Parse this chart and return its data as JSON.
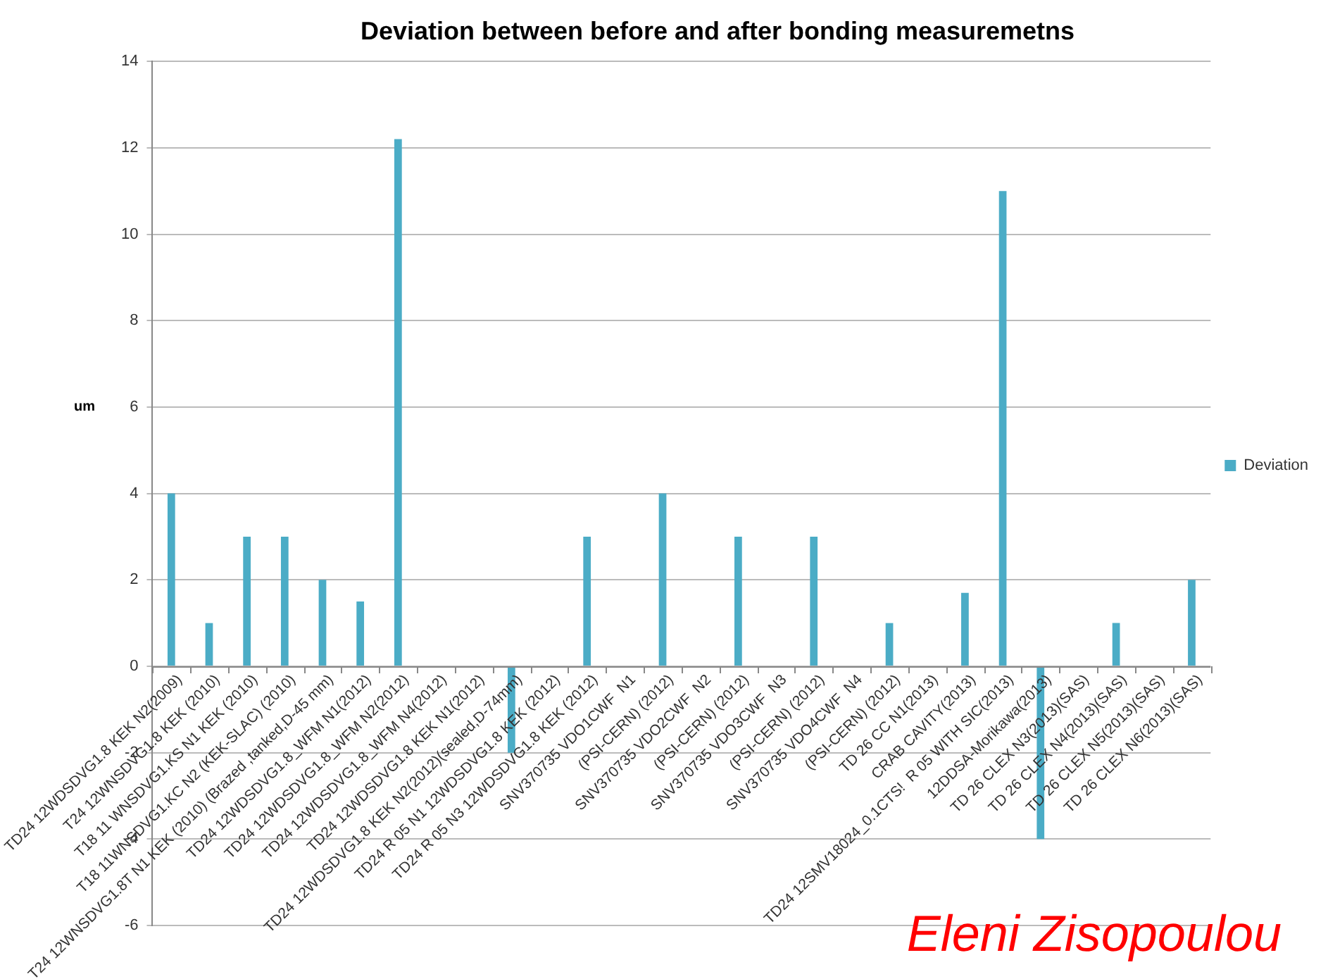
{
  "chart_data": {
    "type": "bar",
    "title": "Deviation between before and after bonding measuremetns",
    "ylabel": "um",
    "categories": [
      "TD24 12WDSDVG1.8 KEK N2(2009)",
      "T24 12WNSDVG1.8 KEK (2010)",
      "T18 11 WNSDVG1.KS N1 KEK (2010)",
      "T18 11WNSDVG1.KC N2 (KEK-SLAC) (2010)",
      "T24 12WNSDVG1.8T N1 KEK (2010) (Brazed ,tanked,D-45 mm)",
      "TD24 12WDSDVG1.8_WFM N1(2012)",
      "TD24 12WDSDVG1.8_WFM N2(2012)",
      "TD24 12WDSDVG1.8_WFM N4(2012)",
      "TD24 12WDSDVG1.8 KEK N1(2012)",
      "TD24 12WDSDVG1.8 KEK N2(2012)(sealed,D-74mm)",
      "TD24 R 05 N1 12WDSDVG1.8 KEK (2012)",
      "TD24 R 05 N3 12WDSDVG1.8 KEK (2012)",
      "SNV370735 VDO1CWF  N1",
      "(PSI-CERN) (2012)",
      "SNV370735 VDO2CWF  N2",
      "(PSI-CERN) (2012)",
      "SNV370735 VDO3CWF  N3",
      "(PSI-CERN) (2012)",
      "SNV370735 VDO4CWF  N4",
      "(PSI-CERN) (2012)",
      "TD 26 CC N1(2013)",
      "CRAB CAVITY(2013)",
      "TD24 12SMV18024_0.1CTS!  R 05 WITH SIC(2013)",
      "12DDSA-Morikawa(2013)",
      "TD 26 CLEX N3(2013)(SAS)",
      "TD 26 CLEX N4(2013)(SAS)",
      "TD 26 CLEX N5(2013)(SAS)",
      "TD 26 CLEX N6(2013)(SAS)"
    ],
    "series": [
      {
        "name": "Deviation",
        "color": "#4bacc6",
        "values": [
          4,
          1,
          3,
          3,
          2,
          1.5,
          12.2,
          null,
          null,
          -2,
          null,
          3,
          null,
          4,
          null,
          3,
          null,
          3,
          null,
          1,
          null,
          1.7,
          11,
          -4,
          null,
          1,
          null,
          2
        ]
      }
    ],
    "ylim": [
      -6,
      14
    ],
    "yticks": [
      -6,
      -4,
      -2,
      0,
      2,
      4,
      6,
      8,
      10,
      12,
      14
    ],
    "grid": "y",
    "legend": "right",
    "annotations": [
      "Eleni Zisopoulou"
    ]
  }
}
